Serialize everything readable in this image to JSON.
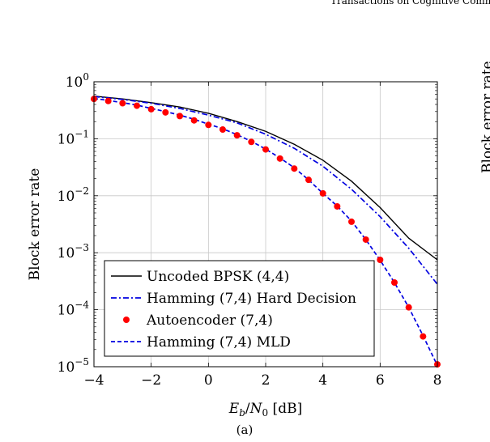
{
  "header": {
    "running_head": "Transactions on Cognitive Comm"
  },
  "caption": "(a)",
  "neighbor_panel": {
    "ylabel_fragment": "Block error rate"
  },
  "chart_data": {
    "type": "line",
    "title": "",
    "xlabel": "E_b/N_0 [dB]",
    "xlabel_parts": {
      "E": "E",
      "b": "b",
      "slash": "/",
      "N": "N",
      "zero": "0",
      "unit": " [dB]"
    },
    "ylabel": "Block error rate",
    "xlim": [
      -4,
      8
    ],
    "ylim": [
      1e-05,
      1
    ],
    "yscale": "log",
    "grid": true,
    "legend_position": "bottom-left",
    "xticks": [
      -4,
      -2,
      0,
      2,
      4,
      6,
      8
    ],
    "xtick_labels": [
      "−4",
      "−2",
      "0",
      "2",
      "4",
      "6",
      "8"
    ],
    "ytick_exponents": [
      "0",
      "−1",
      "−2",
      "−3",
      "−4",
      "−5"
    ],
    "ytick_base": "10",
    "series": [
      {
        "name": "Uncoded BPSK (4,4)",
        "style": "solid",
        "color": "#000000",
        "x": [
          -4,
          -3,
          -2,
          -1,
          0,
          1,
          2,
          3,
          4,
          5,
          6,
          7,
          8
        ],
        "y": [
          0.56,
          0.5,
          0.43,
          0.36,
          0.28,
          0.2,
          0.135,
          0.08,
          0.042,
          0.018,
          0.0062,
          0.0018,
          0.00075
        ]
      },
      {
        "name": "Hamming (7,4) Hard Decision",
        "style": "dashdot",
        "color": "#0000e0",
        "x": [
          -4,
          -3,
          -2,
          -1,
          0,
          1,
          2,
          3,
          4,
          5,
          6,
          7,
          8
        ],
        "y": [
          0.55,
          0.49,
          0.42,
          0.34,
          0.26,
          0.19,
          0.12,
          0.068,
          0.033,
          0.013,
          0.0043,
          0.0012,
          0.00028
        ]
      },
      {
        "name": "Autoencoder (7,4)",
        "style": "markers",
        "color": "#ff0000",
        "x": [
          -4,
          -3.5,
          -3,
          -2.5,
          -2,
          -1.5,
          -1,
          -0.5,
          0,
          0.5,
          1,
          1.5,
          2,
          2.5,
          3,
          3.5,
          4,
          4.5,
          5,
          5.5,
          6,
          6.5,
          7,
          7.5,
          8
        ],
        "y": [
          0.5,
          0.46,
          0.42,
          0.38,
          0.33,
          0.29,
          0.25,
          0.21,
          0.175,
          0.145,
          0.115,
          0.088,
          0.065,
          0.045,
          0.03,
          0.019,
          0.011,
          0.0065,
          0.0035,
          0.0017,
          0.00075,
          0.0003,
          0.00011,
          3.4e-05,
          1.1e-05
        ]
      },
      {
        "name": "Hamming (7,4) MLD",
        "style": "dashed",
        "color": "#0000e0",
        "x": [
          -4,
          -3.5,
          -3,
          -2.5,
          -2,
          -1.5,
          -1,
          -0.5,
          0,
          0.5,
          1,
          1.5,
          2,
          2.5,
          3,
          3.5,
          4,
          4.5,
          5,
          5.5,
          6,
          6.5,
          7,
          7.5,
          8
        ],
        "y": [
          0.51,
          0.47,
          0.43,
          0.39,
          0.34,
          0.3,
          0.26,
          0.22,
          0.18,
          0.15,
          0.118,
          0.09,
          0.066,
          0.046,
          0.031,
          0.019,
          0.011,
          0.0066,
          0.0036,
          0.0017,
          0.00074,
          0.0003,
          0.00011,
          3.5e-05,
          1.05e-05
        ]
      }
    ]
  }
}
